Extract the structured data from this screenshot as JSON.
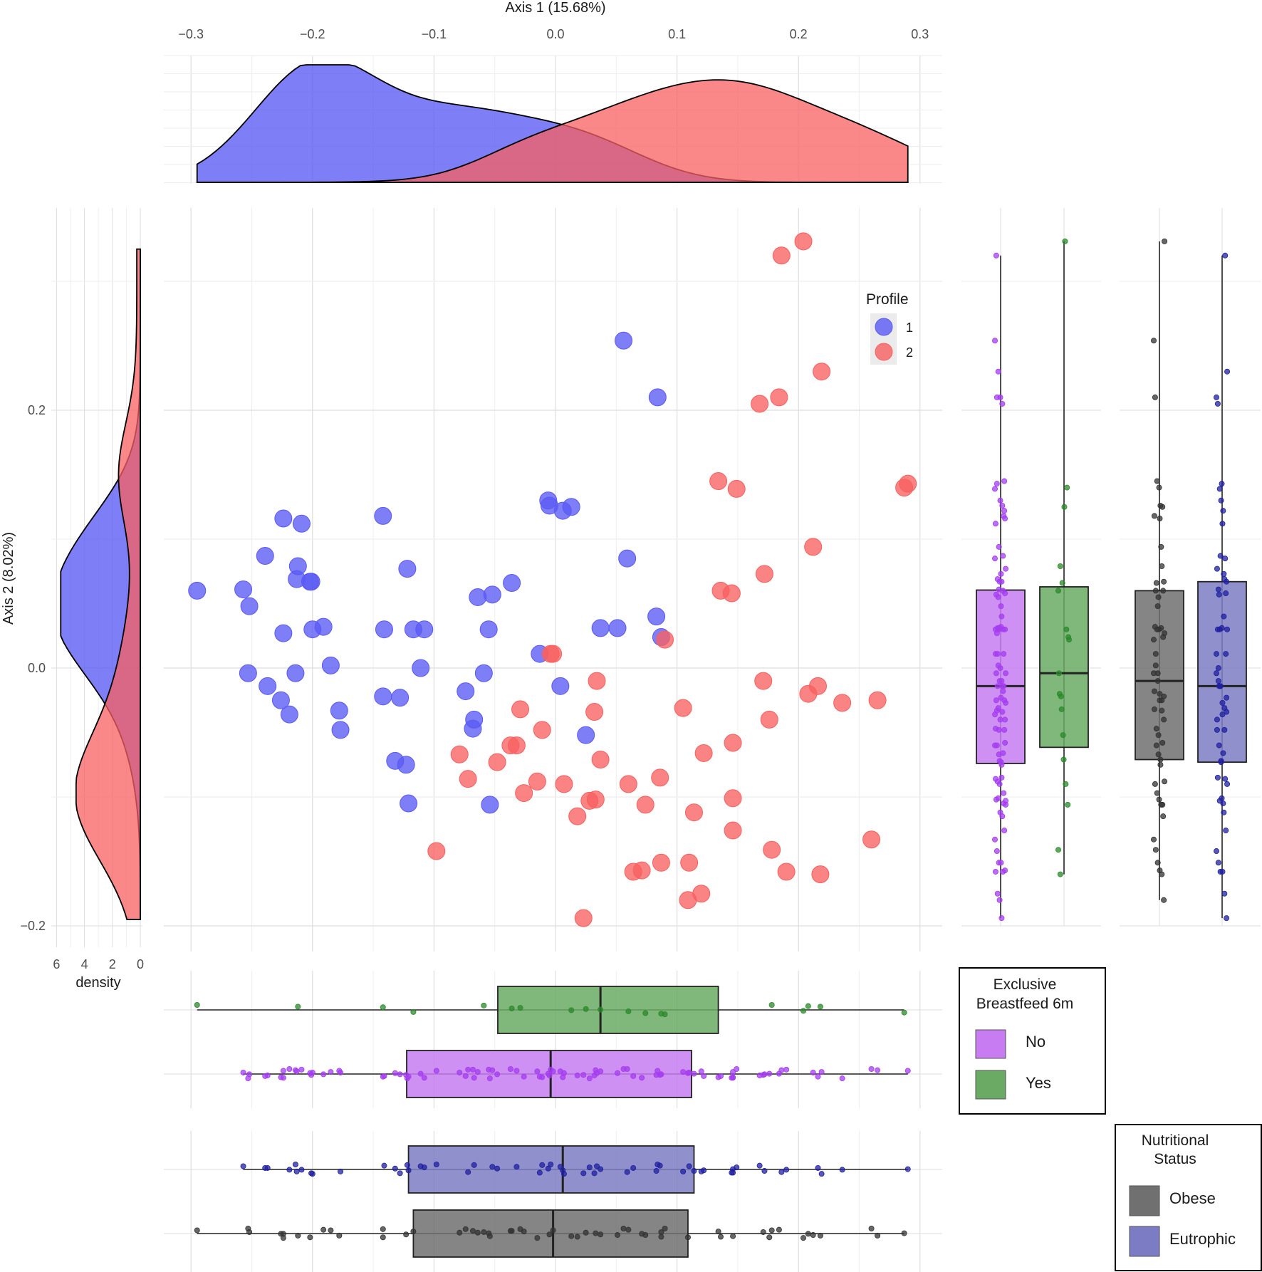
{
  "chart_data": {
    "type": "scatter",
    "x_axis": {
      "label": "Axis 1 (15.68%)",
      "ticks": [
        -0.3,
        -0.2,
        -0.1,
        0.0,
        0.1,
        0.2,
        0.3
      ],
      "tick_labels": [
        "−0.3",
        "−0.2",
        "−0.1",
        "0.0",
        "0.1",
        "0.2",
        "0.3"
      ],
      "range": [
        -0.32,
        0.32
      ]
    },
    "y_axis": {
      "label": "Axis 2 (8.02%)",
      "ticks": [
        -0.2,
        0.0,
        0.2
      ],
      "tick_labels": [
        "−0.2",
        "0.0",
        "0.2"
      ],
      "range": [
        -0.21,
        0.35
      ]
    },
    "density_axis": {
      "label": "density",
      "ticks": [
        6,
        4,
        2,
        0
      ],
      "tick_labels": [
        "6",
        "4",
        "2",
        "0"
      ]
    },
    "profile_legend": {
      "title": "Profile",
      "entries": [
        {
          "label": "1",
          "color": "#5a5af5"
        },
        {
          "label": "2",
          "color": "#f86060"
        }
      ]
    },
    "breastfeed_legend": {
      "title_line1": "Exclusive",
      "title_line2": "Breastfeed 6m",
      "entries": [
        {
          "label": "No",
          "color": "#c77cf2"
        },
        {
          "label": "Yes",
          "color": "#6aaa64"
        }
      ]
    },
    "nutrition_legend": {
      "title_line1": "Nutritional",
      "title_line2": "Status",
      "entries": [
        {
          "label": "Obese",
          "color": "#707070"
        },
        {
          "label": "Eutrophic",
          "color": "#7c7cc4"
        }
      ]
    },
    "series": [
      {
        "name": "1",
        "color": "#5a5af5",
        "points": [
          [
            0.056,
            0.254
          ],
          [
            0.084,
            0.21
          ],
          [
            -0.295,
            0.06
          ],
          [
            -0.257,
            0.061
          ],
          [
            -0.252,
            0.048
          ],
          [
            -0.239,
            0.087
          ],
          [
            -0.224,
            0.116
          ],
          [
            -0.209,
            0.112
          ],
          [
            -0.212,
            0.079
          ],
          [
            -0.213,
            0.069
          ],
          [
            -0.202,
            0.067
          ],
          [
            -0.201,
            0.067
          ],
          [
            -0.142,
            0.118
          ],
          [
            -0.122,
            0.077
          ],
          [
            -0.036,
            0.066
          ],
          [
            -0.052,
            0.057
          ],
          [
            -0.064,
            0.055
          ],
          [
            -0.006,
            0.13
          ],
          [
            -0.005,
            0.126
          ],
          [
            0.006,
            0.122
          ],
          [
            0.013,
            0.125
          ],
          [
            0.059,
            0.085
          ],
          [
            -0.224,
            0.027
          ],
          [
            -0.2,
            0.03
          ],
          [
            -0.191,
            0.032
          ],
          [
            -0.141,
            0.03
          ],
          [
            -0.117,
            0.03
          ],
          [
            -0.108,
            0.03
          ],
          [
            -0.055,
            0.03
          ],
          [
            0.037,
            0.031
          ],
          [
            0.051,
            0.031
          ],
          [
            0.083,
            0.04
          ],
          [
            0.087,
            0.024
          ],
          [
            -0.013,
            0.011
          ],
          [
            -0.253,
            -0.004
          ],
          [
            -0.214,
            -0.004
          ],
          [
            -0.185,
            0.002
          ],
          [
            -0.111,
            0.0
          ],
          [
            -0.059,
            -0.004
          ],
          [
            -0.237,
            -0.014
          ],
          [
            -0.226,
            -0.025
          ],
          [
            -0.219,
            -0.036
          ],
          [
            -0.178,
            -0.033
          ],
          [
            -0.177,
            -0.048
          ],
          [
            -0.142,
            -0.022
          ],
          [
            -0.128,
            -0.023
          ],
          [
            -0.074,
            -0.018
          ],
          [
            -0.067,
            -0.04
          ],
          [
            -0.068,
            -0.047
          ],
          [
            0.004,
            -0.014
          ],
          [
            0.025,
            -0.052
          ],
          [
            -0.132,
            -0.072
          ],
          [
            -0.123,
            -0.075
          ],
          [
            -0.121,
            -0.105
          ],
          [
            -0.054,
            -0.106
          ]
        ]
      },
      {
        "name": "2",
        "color": "#f86060",
        "points": [
          [
            0.186,
            0.32
          ],
          [
            0.204,
            0.331
          ],
          [
            0.219,
            0.23
          ],
          [
            0.184,
            0.21
          ],
          [
            0.168,
            0.205
          ],
          [
            0.134,
            0.145
          ],
          [
            0.149,
            0.139
          ],
          [
            0.287,
            0.14
          ],
          [
            0.29,
            0.143
          ],
          [
            0.212,
            0.094
          ],
          [
            0.172,
            0.073
          ],
          [
            0.136,
            0.06
          ],
          [
            0.145,
            0.058
          ],
          [
            0.09,
            0.022
          ],
          [
            -0.004,
            0.011
          ],
          [
            -0.002,
            0.011
          ],
          [
            0.034,
            -0.01
          ],
          [
            0.171,
            -0.01
          ],
          [
            0.216,
            -0.014
          ],
          [
            0.208,
            -0.02
          ],
          [
            0.236,
            -0.027
          ],
          [
            0.265,
            -0.025
          ],
          [
            0.105,
            -0.031
          ],
          [
            0.176,
            -0.04
          ],
          [
            0.032,
            -0.034
          ],
          [
            -0.029,
            -0.032
          ],
          [
            -0.011,
            -0.048
          ],
          [
            -0.037,
            -0.06
          ],
          [
            -0.032,
            -0.06
          ],
          [
            -0.079,
            -0.067
          ],
          [
            -0.048,
            -0.073
          ],
          [
            0.037,
            -0.071
          ],
          [
            0.122,
            -0.066
          ],
          [
            0.146,
            -0.058
          ],
          [
            -0.072,
            -0.086
          ],
          [
            -0.015,
            -0.088
          ],
          [
            0.007,
            -0.09
          ],
          [
            0.06,
            -0.09
          ],
          [
            0.086,
            -0.085
          ],
          [
            -0.026,
            -0.097
          ],
          [
            0.028,
            -0.103
          ],
          [
            0.033,
            -0.102
          ],
          [
            0.146,
            -0.101
          ],
          [
            0.074,
            -0.106
          ],
          [
            0.114,
            -0.112
          ],
          [
            0.018,
            -0.115
          ],
          [
            0.146,
            -0.126
          ],
          [
            0.26,
            -0.133
          ],
          [
            -0.098,
            -0.142
          ],
          [
            0.178,
            -0.141
          ],
          [
            0.11,
            -0.151
          ],
          [
            0.087,
            -0.151
          ],
          [
            0.064,
            -0.158
          ],
          [
            0.071,
            -0.157
          ],
          [
            0.19,
            -0.158
          ],
          [
            0.218,
            -0.16
          ],
          [
            0.12,
            -0.175
          ],
          [
            0.109,
            -0.18
          ],
          [
            0.023,
            -0.194
          ]
        ]
      }
    ]
  }
}
